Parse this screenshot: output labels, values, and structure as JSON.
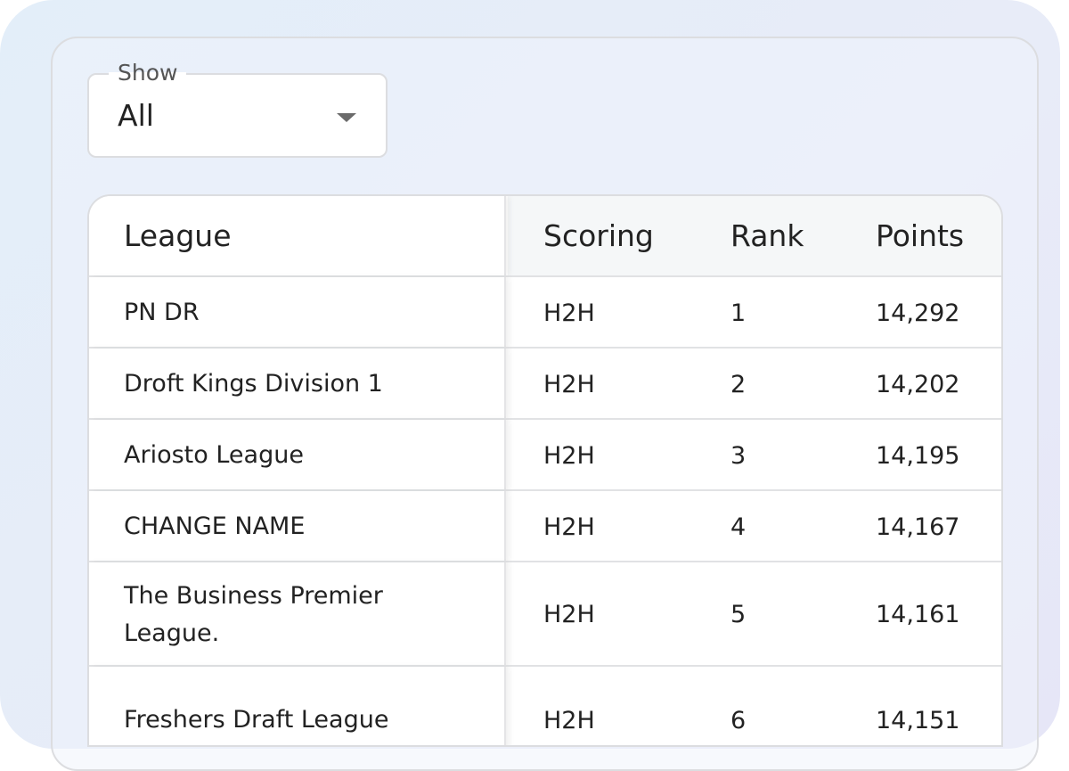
{
  "filter": {
    "label": "Show",
    "value": "All"
  },
  "table": {
    "columns": [
      "League",
      "Scoring",
      "Rank",
      "Points"
    ],
    "rows": [
      {
        "league": "PN DR",
        "scoring": "H2H",
        "rank": "1",
        "points": "14,292"
      },
      {
        "league": "Droft Kings Division 1",
        "scoring": "H2H",
        "rank": "2",
        "points": "14,202"
      },
      {
        "league": "Ariosto League",
        "scoring": "H2H",
        "rank": "3",
        "points": "14,195"
      },
      {
        "league": "CHANGE NAME",
        "scoring": "H2H",
        "rank": "4",
        "points": "14,167"
      },
      {
        "league": "The Business Premier League.",
        "scoring": "H2H",
        "rank": "5",
        "points": "14,161"
      },
      {
        "league": "Freshers Draft League",
        "scoring": "H2H",
        "rank": "6",
        "points": "14,151"
      }
    ]
  }
}
